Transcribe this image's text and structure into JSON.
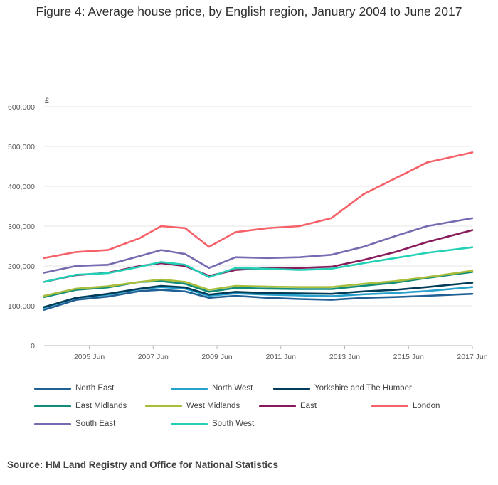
{
  "title": "Figure 4: Average house price, by English region, January 2004 to June 2017",
  "source": "Source: HM Land Registry and Office for National Statistics",
  "chart_data": {
    "type": "line",
    "title": "Figure 4: Average house price, by English region, January 2004 to June 2017",
    "y_unit_label": "£",
    "ylim": [
      0,
      600000
    ],
    "y_ticks": [
      0,
      100000,
      200000,
      300000,
      400000,
      500000,
      600000
    ],
    "y_tick_labels": [
      "0",
      "100,000",
      "200,000",
      "300,000",
      "400,000",
      "500,000",
      "600,000"
    ],
    "xlim": [
      "2004-01",
      "2017-06"
    ],
    "x_ticks": [
      "2005-06",
      "2007-06",
      "2009-06",
      "2011-06",
      "2013-06",
      "2015-06",
      "2017-06"
    ],
    "x_tick_labels": [
      "2005 Jun",
      "2007 Jun",
      "2009 Jun",
      "2011 Jun",
      "2013 Jun",
      "2015 Jun",
      "2017 Jun"
    ],
    "grid": true,
    "legend_position": "bottom",
    "x": [
      "2004-01",
      "2005-01",
      "2006-01",
      "2007-01",
      "2007-09",
      "2008-06",
      "2009-03",
      "2010-01",
      "2011-01",
      "2012-01",
      "2013-01",
      "2014-01",
      "2015-01",
      "2016-01",
      "2017-06"
    ],
    "series": [
      {
        "name": "North East",
        "color": "#206095",
        "values": [
          90000,
          115000,
          123000,
          137000,
          140000,
          136000,
          120000,
          125000,
          120000,
          117000,
          115000,
          120000,
          122000,
          125000,
          130000
        ]
      },
      {
        "name": "North West",
        "color": "#27a0cc",
        "values": [
          95000,
          120000,
          128000,
          142000,
          147000,
          143000,
          125000,
          131000,
          128000,
          126000,
          124000,
          129000,
          132000,
          137000,
          147000
        ]
      },
      {
        "name": "Yorkshire and The Humber",
        "color": "#003c57",
        "values": [
          97000,
          120000,
          130000,
          143000,
          150000,
          146000,
          128000,
          135000,
          132000,
          131000,
          130000,
          136000,
          140000,
          147000,
          158000
        ]
      },
      {
        "name": "East Midlands",
        "color": "#118c7b",
        "values": [
          122000,
          140000,
          146000,
          160000,
          162000,
          155000,
          135000,
          145000,
          143000,
          142000,
          142000,
          150000,
          158000,
          170000,
          185000
        ]
      },
      {
        "name": "West Midlands",
        "color": "#a8bd3a",
        "values": [
          125000,
          143000,
          149000,
          160000,
          166000,
          160000,
          140000,
          150000,
          148000,
          147000,
          147000,
          155000,
          162000,
          172000,
          188000
        ]
      },
      {
        "name": "East",
        "color": "#871a5b",
        "values": [
          160000,
          177000,
          183000,
          200000,
          207000,
          200000,
          175000,
          190000,
          195000,
          195000,
          198000,
          215000,
          235000,
          260000,
          290000
        ]
      },
      {
        "name": "London",
        "color": "#f66068",
        "values": [
          220000,
          235000,
          240000,
          270000,
          300000,
          295000,
          248000,
          285000,
          295000,
          300000,
          320000,
          380000,
          420000,
          460000,
          485000
        ]
      },
      {
        "name": "South East",
        "color": "#746cb1",
        "values": [
          183000,
          200000,
          203000,
          225000,
          240000,
          230000,
          195000,
          222000,
          220000,
          222000,
          228000,
          248000,
          275000,
          300000,
          320000
        ]
      },
      {
        "name": "South West",
        "color": "#22d0b6",
        "values": [
          160000,
          178000,
          182000,
          198000,
          210000,
          203000,
          172000,
          195000,
          193000,
          190000,
          193000,
          207000,
          220000,
          233000,
          247000
        ]
      }
    ]
  }
}
